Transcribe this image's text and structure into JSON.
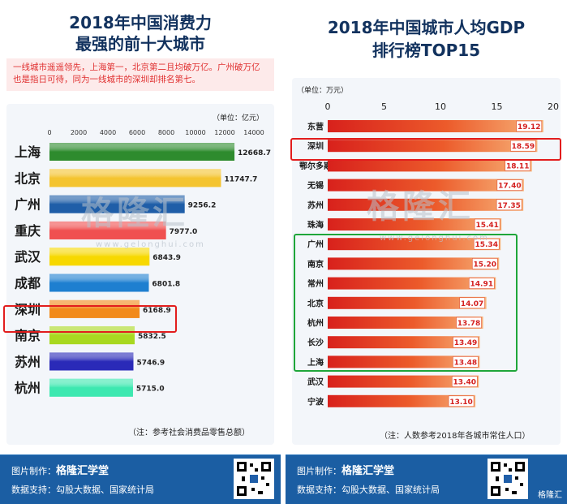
{
  "left": {
    "title_line1": "2018年中国消费力",
    "title_line2": "最强的前十大城市",
    "subtitle": "一线城市遥遥领先，上海第一，北京第二且均破万亿。广州破万亿也是指日可待，同为一线城市的深圳却排名第七。",
    "unit": "（单位：亿元）",
    "note": "（注：参考社会消费品零售总额）",
    "footer_maker_label": "图片制作：",
    "footer_brand": "格隆汇学堂",
    "footer_source": "数据支持：勾股大数据、国家统计局",
    "watermark": "格隆汇",
    "watermark_url": "www.gelonghui.com"
  },
  "right": {
    "title_line1": "2018年中国城市人均GDP",
    "title_line2": "排行榜TOP15",
    "unit": "（单位：万元）",
    "note": "（注：人数参考2018年各城市常住人口）",
    "footer_maker_label": "图片制作：",
    "footer_brand": "格隆汇学堂",
    "footer_source": "数据支持：勾股大数据、国家统计局",
    "watermark": "格隆汇",
    "watermark_url": "www.gelonghui.com",
    "corner_mark": "格隆汇"
  },
  "chart_data": [
    {
      "type": "bar",
      "orientation": "horizontal",
      "title": "2018年中国消费力最强的前十大城市",
      "unit": "亿元",
      "categories": [
        "上海",
        "北京",
        "广州",
        "重庆",
        "武汉",
        "成都",
        "深圳",
        "南京",
        "苏州",
        "杭州"
      ],
      "values": [
        12668.7,
        11747.7,
        9256.2,
        7977.0,
        6843.9,
        6801.8,
        6168.9,
        5832.5,
        5746.9,
        5715.0
      ],
      "value_labels": [
        "12668.7",
        "11747.7",
        "9256.2",
        "7977.0",
        "6843.9",
        "6801.8",
        "6168.9",
        "5832.5",
        "5746.9",
        "5715.0"
      ],
      "colors": [
        "#2e8b2e",
        "#f4c430",
        "#1f5ea8",
        "#f05050",
        "#f7d800",
        "#1e7fd0",
        "#f28a1a",
        "#a8d820",
        "#2a2ab8",
        "#3de8b0"
      ],
      "xlim": [
        0,
        14000
      ],
      "xticks": [
        "0",
        "2000",
        "4000",
        "6000",
        "8000",
        "10000",
        "12000",
        "14000"
      ],
      "highlight": [
        "深圳"
      ]
    },
    {
      "type": "bar",
      "orientation": "horizontal",
      "title": "2018年中国城市人均GDP排行榜TOP15",
      "unit": "万元",
      "categories": [
        "东营",
        "深圳",
        "鄂尔多斯",
        "无锡",
        "苏州",
        "珠海",
        "广州",
        "南京",
        "常州",
        "北京",
        "杭州",
        "长沙",
        "上海",
        "武汉",
        "宁波"
      ],
      "values": [
        19.12,
        18.59,
        18.11,
        17.4,
        17.35,
        15.41,
        15.34,
        15.2,
        14.91,
        14.07,
        13.78,
        13.49,
        13.48,
        13.4,
        13.1
      ],
      "value_labels": [
        "19.12",
        "18.59",
        "18.11",
        "17.40",
        "17.35",
        "15.41",
        "15.34",
        "15.20",
        "14.91",
        "14.07",
        "13.78",
        "13.49",
        "13.48",
        "13.40",
        "13.10"
      ],
      "xlim": [
        0,
        20
      ],
      "xticks": [
        "0",
        "5",
        "10",
        "15",
        "20"
      ],
      "highlight_red": [
        "深圳"
      ],
      "highlight_green": [
        "广州",
        "南京",
        "常州",
        "北京",
        "杭州",
        "长沙",
        "上海"
      ]
    }
  ]
}
